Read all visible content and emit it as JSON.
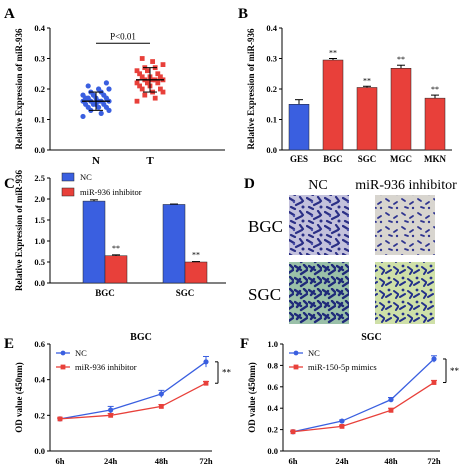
{
  "colors": {
    "blue": "#3a5fe0",
    "red": "#e8403a",
    "stain": "#2a2f8a"
  },
  "chart_data": [
    {
      "panel": "A",
      "type": "scatter",
      "categories": [
        "N",
        "T"
      ],
      "ylabel": "Relative Expression of miR-936",
      "ylim": [
        0,
        0.4
      ],
      "yticks": [
        "0.0",
        "0.1",
        "0.2",
        "0.3",
        "0.4"
      ],
      "annotation": "P<0.01",
      "series": [
        {
          "category": "N",
          "mean": 0.16,
          "sd": 0.03,
          "values": [
            0.11,
            0.12,
            0.13,
            0.13,
            0.14,
            0.14,
            0.14,
            0.15,
            0.15,
            0.15,
            0.15,
            0.16,
            0.16,
            0.16,
            0.16,
            0.16,
            0.17,
            0.17,
            0.17,
            0.17,
            0.18,
            0.18,
            0.18,
            0.19,
            0.19,
            0.2,
            0.2,
            0.21,
            0.22
          ]
        },
        {
          "category": "T",
          "mean": 0.23,
          "sd": 0.04,
          "values": [
            0.16,
            0.17,
            0.18,
            0.19,
            0.19,
            0.2,
            0.2,
            0.21,
            0.21,
            0.22,
            0.22,
            0.22,
            0.23,
            0.23,
            0.23,
            0.23,
            0.24,
            0.24,
            0.24,
            0.25,
            0.25,
            0.26,
            0.26,
            0.27,
            0.27,
            0.28,
            0.29,
            0.3
          ]
        }
      ]
    },
    {
      "panel": "B",
      "type": "bar",
      "categories": [
        "GES",
        "BGC",
        "SGC",
        "MGC",
        "MKN"
      ],
      "values": [
        0.15,
        0.295,
        0.205,
        0.268,
        0.17
      ],
      "errors": [
        0.015,
        0.005,
        0.004,
        0.01,
        0.01
      ],
      "significance": [
        "",
        "**",
        "**",
        "**",
        "**"
      ],
      "ylabel": "Relative Expression of miR-936",
      "ylim": [
        0,
        0.4
      ],
      "yticks": [
        "0.0",
        "0.1",
        "0.2",
        "0.3",
        "0.4"
      ]
    },
    {
      "panel": "C",
      "type": "bar",
      "categories": [
        "BGC",
        "SGC"
      ],
      "series": [
        {
          "name": "NC",
          "values": [
            1.95,
            1.87
          ],
          "errors": [
            0.03,
            0.01
          ]
        },
        {
          "name": "miR-936 inhibitor",
          "values": [
            0.65,
            0.5
          ],
          "errors": [
            0.02,
            0.01
          ]
        }
      ],
      "significance": [
        "**",
        "**"
      ],
      "ylabel": "Relative Expression of miR-936",
      "ylim": [
        0,
        2.5
      ],
      "yticks": [
        "0.0",
        "0.5",
        "1.0",
        "1.5",
        "2.0",
        "2.5"
      ]
    },
    {
      "panel": "E",
      "type": "line",
      "title": "BGC",
      "categories": [
        "6h",
        "24h",
        "48h",
        "72h"
      ],
      "series": [
        {
          "name": "NC",
          "values": [
            0.18,
            0.23,
            0.32,
            0.5
          ],
          "errors": [
            0.005,
            0.02,
            0.02,
            0.03
          ]
        },
        {
          "name": "miR-936 inhibitor",
          "values": [
            0.18,
            0.2,
            0.25,
            0.38
          ],
          "errors": [
            0.005,
            0.01,
            0.01,
            0.01
          ]
        }
      ],
      "significance": "**",
      "ylabel": "OD value (450nm)",
      "ylim": [
        0,
        0.6
      ],
      "yticks": [
        "0.0",
        "0.2",
        "0.4",
        "0.6"
      ]
    },
    {
      "panel": "F",
      "type": "line",
      "title": "SGC",
      "categories": [
        "6h",
        "24h",
        "48h",
        "72h"
      ],
      "series": [
        {
          "name": "NC",
          "values": [
            0.18,
            0.28,
            0.48,
            0.86
          ],
          "errors": [
            0.005,
            0.01,
            0.02,
            0.03
          ]
        },
        {
          "name": "miR-150-5p mimics",
          "values": [
            0.18,
            0.23,
            0.38,
            0.64
          ],
          "errors": [
            0.005,
            0.01,
            0.02,
            0.02
          ]
        }
      ],
      "significance": "**",
      "ylabel": "OD value (450nm)",
      "ylim": [
        0,
        1.0
      ],
      "yticks": [
        "0.0",
        "0.2",
        "0.4",
        "0.6",
        "0.8",
        "1.0"
      ]
    }
  ],
  "panel_d": {
    "columns": [
      "NC",
      "miR-936 inhibitor"
    ],
    "rows": [
      "BGC",
      "SGC"
    ]
  },
  "panel_labels": [
    "A",
    "B",
    "C",
    "D",
    "E",
    "F"
  ]
}
